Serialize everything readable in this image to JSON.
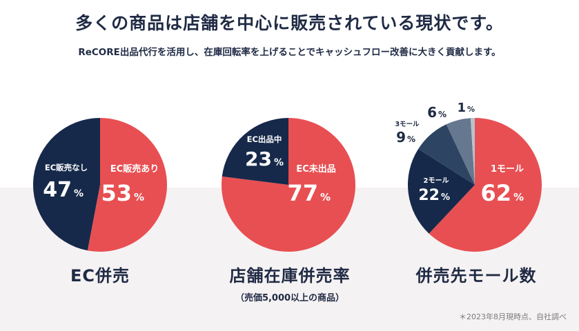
{
  "header": {
    "title": "多くの商品は店舗を中心に販売されている現状です。",
    "subtitle": "ReCORE出品代行を活用し、在庫回転率を上げることでキャッシュフロー改善に大きく貢献します。"
  },
  "colors": {
    "red": "#e84f52",
    "navy": "#16294a",
    "slate1": "#2d4562",
    "slate2": "#4d6580",
    "slate3": "#7d8ea2",
    "slate4": "#b8c2cc",
    "band": "#f5f2f3"
  },
  "chart_data": [
    {
      "type": "pie",
      "title": "EC併売",
      "subtitle": "",
      "slices": [
        {
          "label": "EC販売あり",
          "value": 53,
          "value_text": "53",
          "unit": "%",
          "color": "#e84f52"
        },
        {
          "label": "EC販売なし",
          "value": 47,
          "value_text": "47",
          "unit": "%",
          "color": "#16294a"
        }
      ]
    },
    {
      "type": "pie",
      "title": "店舗在庫併売率",
      "subtitle": "（売価5,000以上の商品）",
      "slices": [
        {
          "label": "EC未出品",
          "value": 77,
          "value_text": "77",
          "unit": "%",
          "color": "#e84f52"
        },
        {
          "label": "EC出品中",
          "value": 23,
          "value_text": "23",
          "unit": "%",
          "color": "#16294a"
        }
      ]
    },
    {
      "type": "pie",
      "title": "併売先モール数",
      "subtitle": "",
      "slices": [
        {
          "label": "1モール",
          "value": 62,
          "value_text": "62",
          "unit": "%",
          "color": "#e84f52"
        },
        {
          "label": "2モール",
          "value": 22,
          "value_text": "22",
          "unit": "%",
          "color": "#16294a"
        },
        {
          "label": "3モール",
          "value": 9,
          "value_text": "9",
          "unit": "%",
          "color": "#2d4562"
        },
        {
          "label": "",
          "value": 6,
          "value_text": "6",
          "unit": "%",
          "color": "#66788f"
        },
        {
          "label": "",
          "value": 1,
          "value_text": "1",
          "unit": "%",
          "color": "#b8c2cc"
        }
      ]
    }
  ],
  "footnote": "＊2023年8月現時点、自社調べ"
}
